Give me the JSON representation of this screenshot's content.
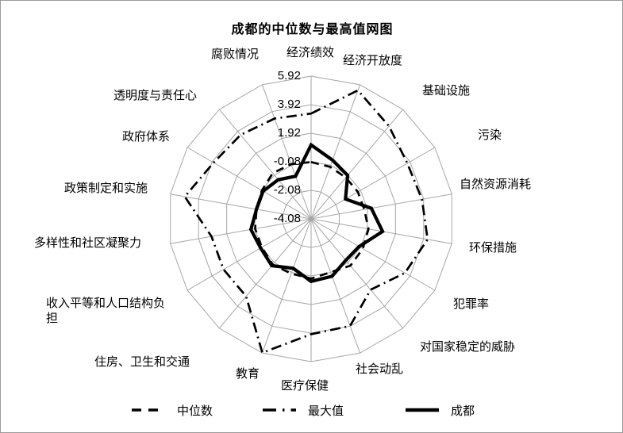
{
  "chart_data": {
    "type": "radar",
    "title": "成都的中位数与最高值网图",
    "categories": [
      "经济绩效",
      "经济开放度",
      "基础设施",
      "污染",
      "自然资源消耗",
      "环保措施",
      "犯罪率",
      "对国家稳定的威胁",
      "社会动乱",
      "医疗保健",
      "教育",
      "住房、卫生和交通",
      "收入平等和人口结构负担",
      "多样性和社区凝聚力",
      "政策制定和实施",
      "政府体系",
      "透明度与责任心",
      "腐败情况"
    ],
    "series": [
      {
        "name": "中位数",
        "style": "dashed",
        "values": [
          -0.1,
          -0.2,
          -0.3,
          -0.3,
          -0.3,
          0.0,
          0.1,
          0.2,
          -0.1,
          0.1,
          0.0,
          0.1,
          -0.1,
          -0.1,
          -0.2,
          -0.1,
          0.1,
          0.0
        ]
      },
      {
        "name": "最大值",
        "style": "dash-dot",
        "values": [
          3.3,
          5.5,
          4.4,
          3.7,
          3.8,
          4.2,
          3.5,
          2.4,
          3.9,
          4.0,
          5.9,
          3.0,
          3.0,
          3.0,
          4.9,
          3.8,
          3.6,
          3.4
        ]
      },
      {
        "name": "成都",
        "style": "solid",
        "values": [
          1.1,
          0.3,
          -0.1,
          -1.3,
          0.2,
          1.0,
          -0.2,
          -0.3,
          0.2,
          0.3,
          -0.4,
          0.2,
          0.0,
          0.2,
          -0.2,
          -0.2,
          -0.5,
          -0.9
        ]
      }
    ],
    "axis": {
      "min": -4.08,
      "max": 5.92,
      "step": 2,
      "ticks": [
        "5.92",
        "3.92",
        "1.92",
        "-0.08",
        "-2.08",
        "-4.08"
      ]
    },
    "legend_position": "bottom",
    "colors": {
      "line": "#000000",
      "grid": "#a6a6a6",
      "background": "#ffffff"
    }
  }
}
